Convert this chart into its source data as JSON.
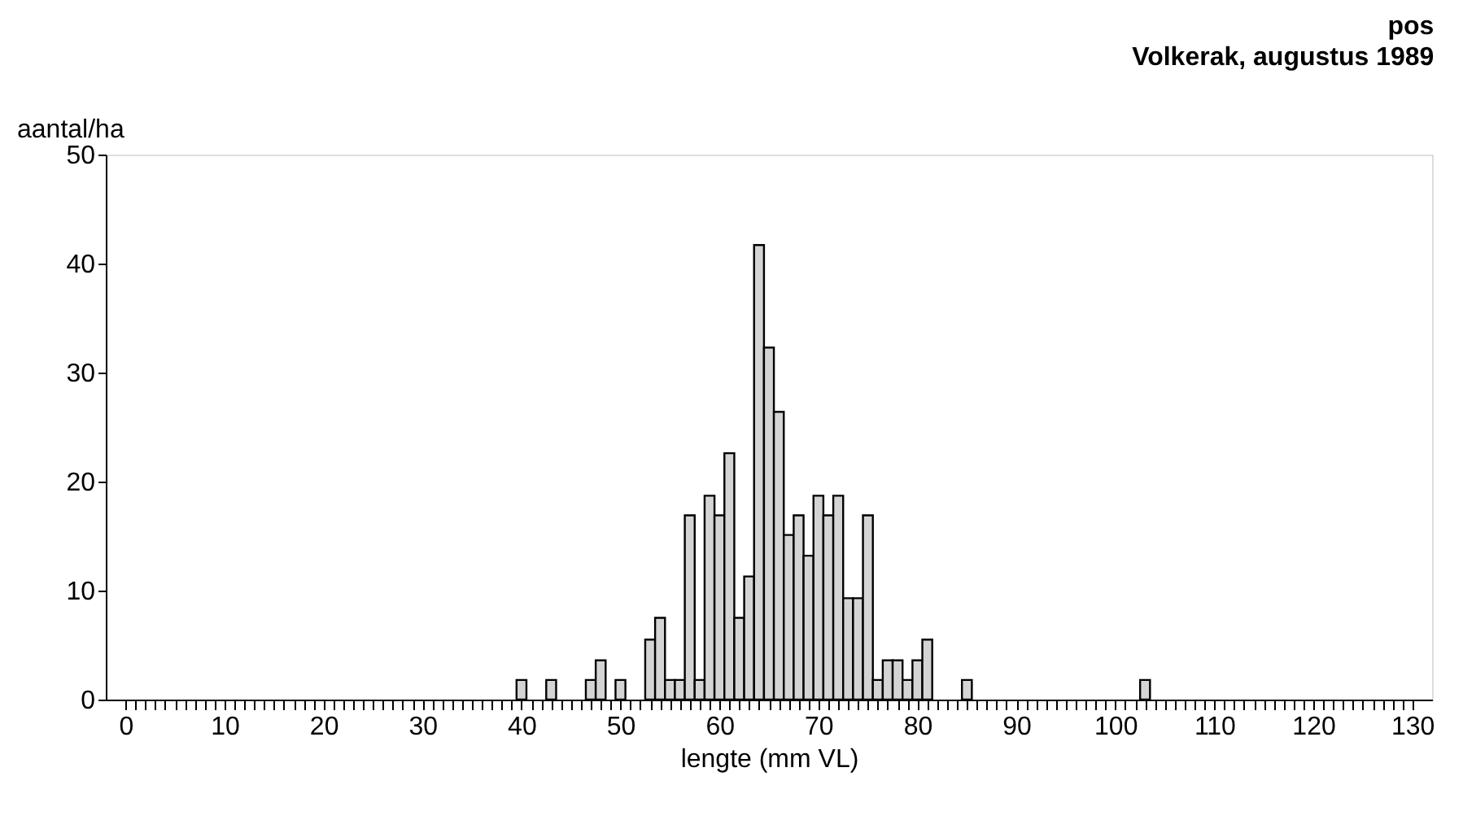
{
  "chart_data": {
    "type": "histogram",
    "title": "pos",
    "subtitle": "Volkerak, augustus 1989",
    "xlabel": "lengte (mm VL)",
    "ylabel": "aantal/ha",
    "color": "#d4d4d4",
    "bins": [
      39.5,
      40.5,
      41.5,
      42.5,
      43.5,
      44.5,
      45.5,
      46.5,
      47.5,
      48.5,
      49.5,
      50.5,
      51.5,
      52.5,
      53.5,
      54.5,
      55.5,
      56.5,
      57.5,
      58.5,
      59.5,
      60.5,
      61.5,
      62.5,
      63.5,
      64.5,
      65.5,
      66.5,
      67.5,
      68.5,
      69.5,
      70.5,
      71.5,
      72.5,
      73.5,
      74.5,
      75.5,
      76.5,
      77.5,
      78.5,
      79.5,
      80.5,
      81.5,
      82.5,
      83.5,
      84.5,
      85.5,
      86.5,
      87.5,
      88.5,
      89.5,
      90.5,
      91.5,
      92.5,
      93.5,
      94.5,
      95.5,
      96.5,
      97.5,
      98.5,
      99.5,
      100.5,
      101.5,
      102.5,
      103.5
    ],
    "values": [
      1.8,
      0,
      0,
      1.8,
      0,
      0,
      0,
      1.8,
      3.6,
      0,
      1.8,
      0,
      0,
      5.5,
      7.5,
      1.8,
      1.8,
      16.9,
      1.8,
      18.7,
      16.9,
      22.6,
      7.5,
      11.3,
      41.7,
      32.3,
      26.4,
      15.1,
      16.9,
      13.2,
      18.7,
      16.9,
      18.7,
      9.3,
      9.3,
      16.9,
      1.8,
      3.6,
      3.6,
      1.8,
      3.6,
      5.5,
      0,
      0,
      0,
      1.8,
      0,
      0,
      0,
      0,
      0,
      0,
      0,
      0,
      0,
      0,
      0,
      0,
      0,
      0,
      0,
      0,
      0,
      1.8
    ],
    "xlim": [
      -2,
      132
    ],
    "ylim": [
      0,
      50
    ],
    "yticks": [
      0,
      10,
      20,
      30,
      40,
      50
    ],
    "xticks": [
      0,
      {
        "value": 1,
        "label": null
      },
      {
        "value": 2,
        "label": null
      },
      {
        "value": 3,
        "label": null
      },
      {
        "value": 4,
        "label": null
      },
      {
        "value": 5,
        "label": null
      },
      {
        "value": 6,
        "label": null
      },
      {
        "value": 7,
        "label": null
      },
      {
        "value": 8,
        "label": null
      },
      {
        "value": 9,
        "label": null
      },
      10,
      {
        "value": 11,
        "label": null
      },
      {
        "value": 12,
        "label": null
      },
      {
        "value": 13,
        "label": null
      },
      {
        "value": 14,
        "label": null
      },
      {
        "value": 15,
        "label": null
      },
      {
        "value": 16,
        "label": null
      },
      {
        "value": 17,
        "label": null
      },
      {
        "value": 18,
        "label": null
      },
      {
        "value": 19,
        "label": null
      },
      20,
      {
        "value": 21,
        "label": null
      },
      {
        "value": 22,
        "label": null
      },
      {
        "value": 23,
        "label": null
      },
      {
        "value": 24,
        "label": null
      },
      {
        "value": 25,
        "label": null
      },
      {
        "value": 26,
        "label": null
      },
      {
        "value": 27,
        "label": null
      },
      {
        "value": 28,
        "label": null
      },
      {
        "value": 29,
        "label": null
      },
      30,
      {
        "value": 31,
        "label": null
      },
      {
        "value": 32,
        "label": null
      },
      {
        "value": 33,
        "label": null
      },
      {
        "value": 34,
        "label": null
      },
      {
        "value": 35,
        "label": null
      },
      {
        "value": 36,
        "label": null
      },
      {
        "value": 37,
        "label": null
      },
      {
        "value": 38,
        "label": null
      },
      {
        "value": 39,
        "label": null
      },
      40,
      {
        "value": 41,
        "label": null
      },
      {
        "value": 42,
        "label": null
      },
      {
        "value": 43,
        "label": null
      },
      {
        "value": 44,
        "label": null
      },
      {
        "value": 45,
        "label": null
      },
      {
        "value": 46,
        "label": null
      },
      {
        "value": 47,
        "label": null
      },
      {
        "value": 48,
        "label": null
      },
      {
        "value": 49,
        "label": null
      },
      50,
      {
        "value": 51,
        "label": null
      },
      {
        "value": 52,
        "label": null
      },
      {
        "value": 53,
        "label": null
      },
      {
        "value": 54,
        "label": null
      },
      {
        "value": 55,
        "label": null
      },
      {
        "value": 56,
        "label": null
      },
      {
        "value": 57,
        "label": null
      },
      {
        "value": 58,
        "label": null
      },
      {
        "value": 59,
        "label": null
      },
      60,
      {
        "value": 61,
        "label": null
      },
      {
        "value": 62,
        "label": null
      },
      {
        "value": 63,
        "label": null
      },
      {
        "value": 64,
        "label": null
      },
      {
        "value": 65,
        "label": null
      },
      {
        "value": 66,
        "label": null
      },
      {
        "value": 67,
        "label": null
      },
      {
        "value": 68,
        "label": null
      },
      {
        "value": 69,
        "label": null
      },
      70,
      {
        "value": 71,
        "label": null
      },
      {
        "value": 72,
        "label": null
      },
      {
        "value": 73,
        "label": null
      },
      {
        "value": 74,
        "label": null
      },
      {
        "value": 75,
        "label": null
      },
      {
        "value": 76,
        "label": null
      },
      {
        "value": 77,
        "label": null
      },
      {
        "value": 78,
        "label": null
      },
      {
        "value": 79,
        "label": null
      },
      80,
      {
        "value": 81,
        "label": null
      },
      {
        "value": 82,
        "label": null
      },
      {
        "value": 83,
        "label": null
      },
      {
        "value": 84,
        "label": null
      },
      {
        "value": 85,
        "label": null
      },
      {
        "value": 86,
        "label": null
      },
      {
        "value": 87,
        "label": null
      },
      {
        "value": 88,
        "label": null
      },
      {
        "value": 89,
        "label": null
      },
      90,
      {
        "value": 91,
        "label": null
      },
      {
        "value": 92,
        "label": null
      },
      {
        "value": 93,
        "label": null
      },
      {
        "value": 94,
        "label": null
      },
      {
        "value": 95,
        "label": null
      },
      {
        "value": 96,
        "label": null
      },
      {
        "value": 97,
        "label": null
      },
      {
        "value": 98,
        "label": null
      },
      {
        "value": 99,
        "label": null
      },
      100,
      {
        "value": 101,
        "label": null
      },
      {
        "value": 102,
        "label": null
      },
      {
        "value": 103,
        "label": null
      },
      {
        "value": 104,
        "label": null
      },
      {
        "value": 105,
        "label": null
      },
      {
        "value": 106,
        "label": null
      },
      {
        "value": 107,
        "label": null
      },
      {
        "value": 108,
        "label": null
      },
      {
        "value": 109,
        "label": null
      },
      110,
      {
        "value": 111,
        "label": null
      },
      {
        "value": 112,
        "label": null
      },
      {
        "value": 113,
        "label": null
      },
      {
        "value": 114,
        "label": null
      },
      {
        "value": 115,
        "label": null
      },
      {
        "value": 116,
        "label": null
      },
      {
        "value": 117,
        "label": null
      },
      {
        "value": 118,
        "label": null
      },
      {
        "value": 119,
        "label": null
      },
      120,
      {
        "value": 121,
        "label": null
      },
      {
        "value": 122,
        "label": null
      },
      {
        "value": 123,
        "label": null
      },
      {
        "value": 124,
        "label": null
      },
      {
        "value": 125,
        "label": null
      },
      {
        "value": 126,
        "label": null
      },
      {
        "value": 127,
        "label": null
      },
      {
        "value": 128,
        "label": null
      },
      {
        "value": 129,
        "label": null
      },
      130
    ],
    "grid": false
  }
}
